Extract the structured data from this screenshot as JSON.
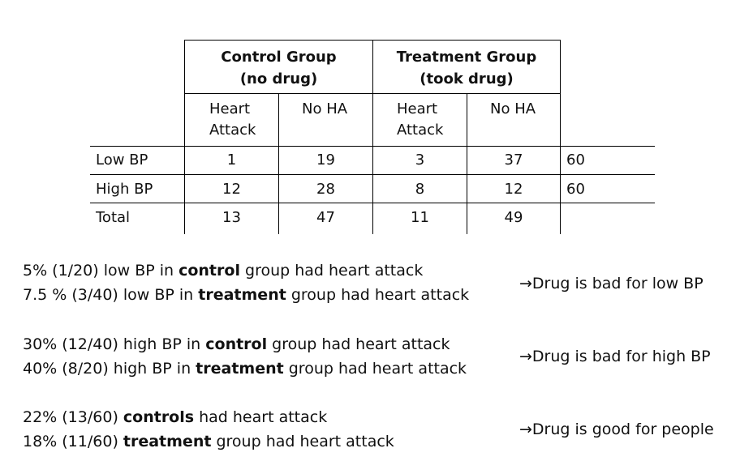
{
  "table": {
    "groups": [
      {
        "title": "Control Group",
        "subtitle": "(no drug)"
      },
      {
        "title": "Treatment Group",
        "subtitle": "(took drug)"
      }
    ],
    "subheaders": [
      [
        "Heart",
        "Attack"
      ],
      [
        "No HA"
      ],
      [
        "Heart",
        "Attack"
      ],
      [
        "No HA"
      ]
    ],
    "rows": [
      {
        "label": "Low BP",
        "values": [
          "1",
          "19",
          "3",
          "37"
        ],
        "total": "60"
      },
      {
        "label": "High BP",
        "values": [
          "12",
          "28",
          "8",
          "12"
        ],
        "total": "60"
      },
      {
        "label": "Total",
        "values": [
          "13",
          "47",
          "11",
          "49"
        ],
        "total": ""
      }
    ]
  },
  "statements": [
    {
      "lines": [
        {
          "pre": "5% (1/20) low BP in ",
          "bold": "control",
          "post": " group had heart attack"
        },
        {
          "pre": "7.5 % (3/40) low BP in ",
          "bold": "treatment",
          "post": " group had heart attack"
        }
      ],
      "conclusion": "→Drug is bad for low BP"
    },
    {
      "lines": [
        {
          "pre": "30% (12/40) high BP in ",
          "bold": "control",
          "post": " group had heart attack"
        },
        {
          "pre": "40% (8/20) high BP in ",
          "bold": "treatment",
          "post": " group had heart attack"
        }
      ],
      "conclusion": "→Drug is bad for high BP"
    },
    {
      "lines": [
        {
          "pre": "22% (13/60) ",
          "bold": "controls",
          "post": " had heart attack"
        },
        {
          "pre": "18% (11/60) ",
          "bold": "treatment",
          "post": " group had heart attack"
        }
      ],
      "conclusion": "→Drug is good for people"
    }
  ]
}
